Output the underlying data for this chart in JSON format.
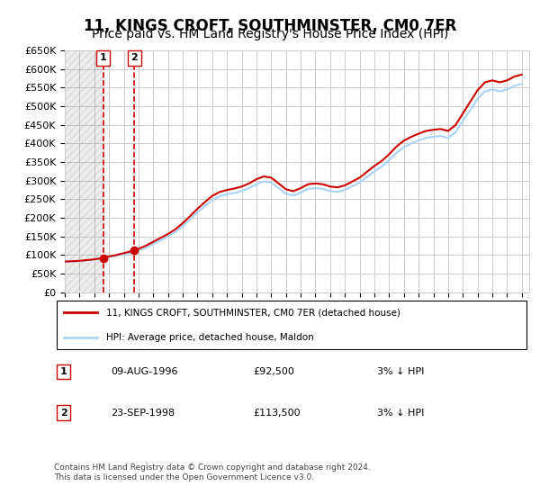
{
  "title": "11, KINGS CROFT, SOUTHMINSTER, CM0 7ER",
  "subtitle": "Price paid vs. HM Land Registry's House Price Index (HPI)",
  "legend_line1": "11, KINGS CROFT, SOUTHMINSTER, CM0 7ER (detached house)",
  "legend_line2": "HPI: Average price, detached house, Maldon",
  "sale1_label": "1",
  "sale1_date": "09-AUG-1996",
  "sale1_price": "£92,500",
  "sale1_hpi": "3% ↓ HPI",
  "sale1_year": 1996.6,
  "sale1_value": 92500,
  "sale2_label": "2",
  "sale2_date": "23-SEP-1998",
  "sale2_price": "£113,500",
  "sale2_hpi": "3% ↓ HPI",
  "sale2_year": 1998.72,
  "sale2_value": 113500,
  "footer": "Contains HM Land Registry data © Crown copyright and database right 2024.\nThis data is licensed under the Open Government Licence v3.0.",
  "ylim": [
    0,
    650000
  ],
  "ytick_step": 50000,
  "hpi_color": "#aad4f5",
  "price_color": "#cc0000",
  "marker_color": "#cc0000",
  "grid_color": "#cccccc",
  "dashed_color": "#cc0000",
  "hatch_color": "#e8e8e8",
  "background_color": "#ffffff",
  "title_fontsize": 12,
  "subtitle_fontsize": 10
}
